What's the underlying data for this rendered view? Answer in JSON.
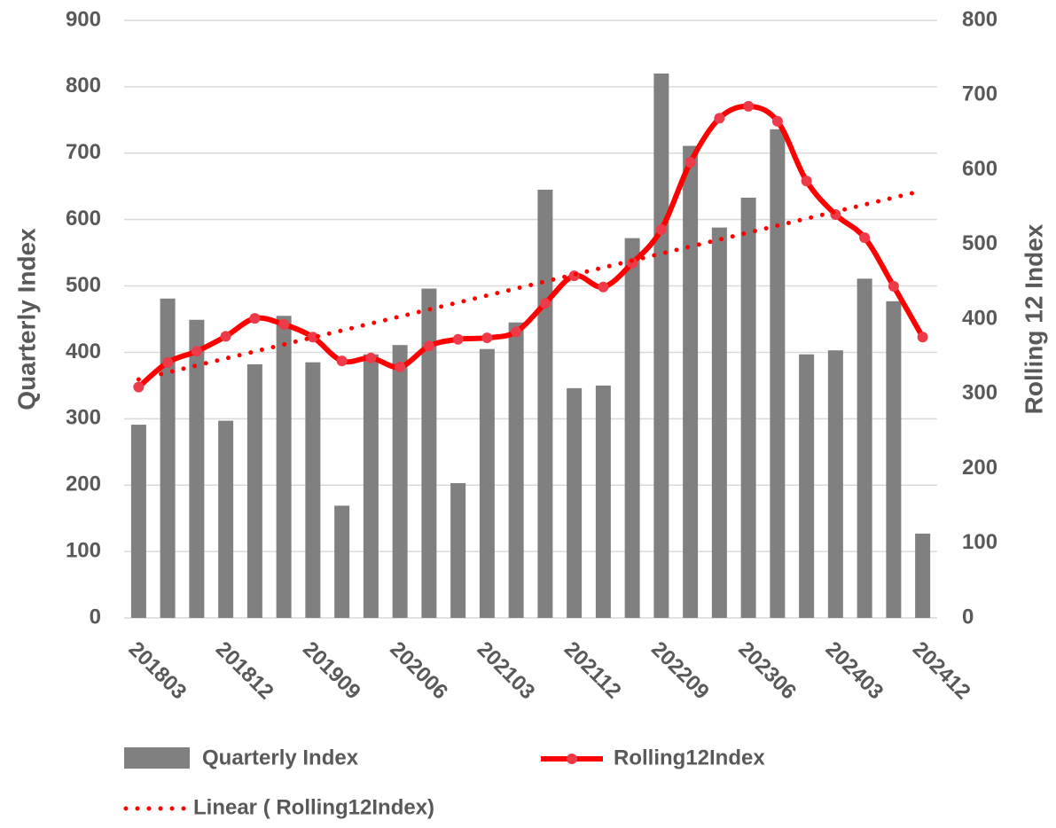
{
  "chart_data": {
    "type": "bar-line",
    "categories": [
      "201803",
      null,
      null,
      "201812",
      null,
      null,
      "201909",
      null,
      null,
      "202006",
      null,
      null,
      "202103",
      null,
      null,
      "202112",
      null,
      null,
      "202209",
      null,
      null,
      "202306",
      null,
      null,
      "202403",
      null,
      null,
      "202412"
    ],
    "series": [
      {
        "name": "Quarterly Index",
        "type": "bar",
        "color": "#808080",
        "values": [
          291,
          481,
          449,
          297,
          382,
          455,
          385,
          169,
          397,
          411,
          496,
          203,
          405,
          445,
          645,
          346,
          350,
          572,
          820,
          711,
          588,
          633,
          736,
          397,
          403,
          511,
          477,
          127
        ]
      },
      {
        "name": "Rolling12Index",
        "type": "line",
        "axis": "y2",
        "color": "#ff0000",
        "values": [
          309,
          342,
          357,
          377,
          401,
          393,
          376,
          344,
          348,
          336,
          364,
          373,
          375,
          383,
          421,
          458,
          443,
          475,
          520,
          610,
          669,
          685,
          665,
          585,
          540,
          509,
          444,
          376
        ]
      }
    ],
    "trendline": {
      "name": "Linear ( Rolling12Index)",
      "color": "#ff0000"
    },
    "ylabel": "Quarterly Index",
    "y2label": "Rolling 12 Index",
    "ylim": [
      0,
      900
    ],
    "yticks": [
      0,
      100,
      200,
      300,
      400,
      500,
      600,
      700,
      800,
      900
    ],
    "y2lim": [
      0,
      800
    ],
    "y2ticks": [
      0,
      100,
      200,
      300,
      400,
      500,
      600,
      700,
      800
    ],
    "grid": true
  }
}
